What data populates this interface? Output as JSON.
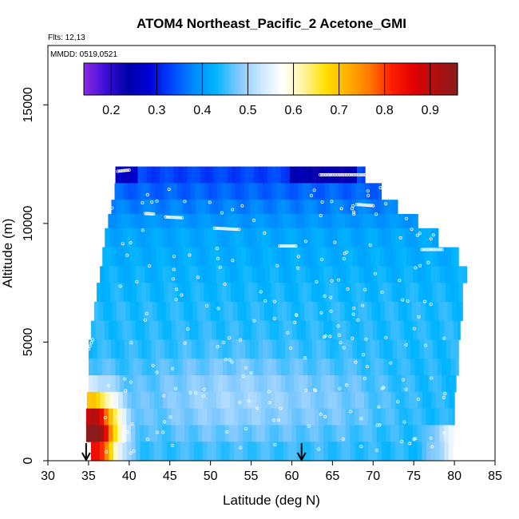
{
  "chart_data": {
    "type": "heatmap",
    "title": "ATOM4 Northeast_Pacific_2 Acetone_GMI",
    "flights_label": "Flts: 12,13",
    "dates_label": "MMDD: 0519,0521",
    "xlabel": "Latitude (deg N)",
    "ylabel": "Altitude (m)",
    "xlim": [
      30,
      85
    ],
    "ylim": [
      0,
      17500
    ],
    "x_ticks": [
      "30",
      "35",
      "40",
      "45",
      "50",
      "55",
      "60",
      "65",
      "70",
      "75",
      "80",
      "85"
    ],
    "y_ticks": [
      "0",
      "5000",
      "10000",
      "15000"
    ],
    "grid": false,
    "colorbar": {
      "range": [
        0.14,
        0.96
      ],
      "ticks": [
        "0.2",
        "0.3",
        "0.4",
        "0.5",
        "0.6",
        "0.7",
        "0.8",
        "0.9"
      ],
      "placement": "top",
      "colors": [
        "#8a2be2",
        "#3b0fd8",
        "#0000a8",
        "#0000d8",
        "#0046ff",
        "#008cff",
        "#00b4ff",
        "#7ec8ff",
        "#c8e6ff",
        "#ffffff",
        "#fff4a0",
        "#ffe000",
        "#ffb000",
        "#ff7800",
        "#ff2000",
        "#e00000",
        "#b01010",
        "#8b1a1a"
      ]
    },
    "altitude_bands": [
      {
        "alt": [
          11700,
          12400
        ],
        "lat": [
          38.3,
          69.0
        ]
      },
      {
        "alt": [
          11000,
          11700
        ],
        "lat": [
          38.2,
          71.0
        ]
      },
      {
        "alt": [
          10400,
          11000
        ],
        "lat": [
          37.8,
          73.0
        ]
      },
      {
        "alt": [
          9800,
          10400
        ],
        "lat": [
          37.4,
          75.5
        ]
      },
      {
        "alt": [
          9000,
          9800
        ],
        "lat": [
          37.0,
          78.0
        ]
      },
      {
        "alt": [
          8200,
          9000
        ],
        "lat": [
          36.7,
          80.5
        ]
      },
      {
        "alt": [
          7500,
          8200
        ],
        "lat": [
          36.4,
          81.5
        ]
      },
      {
        "alt": [
          6700,
          7500
        ],
        "lat": [
          36.0,
          81.0
        ]
      },
      {
        "alt": [
          5900,
          6700
        ],
        "lat": [
          35.7,
          81.0
        ]
      },
      {
        "alt": [
          5100,
          5900
        ],
        "lat": [
          35.3,
          80.7
        ]
      },
      {
        "alt": [
          4300,
          5100
        ],
        "lat": [
          35.0,
          80.5
        ]
      },
      {
        "alt": [
          3600,
          4300
        ],
        "lat": [
          35.0,
          80.5
        ]
      },
      {
        "alt": [
          2900,
          3600
        ],
        "lat": [
          35.0,
          80.2
        ]
      },
      {
        "alt": [
          2200,
          2900
        ],
        "lat": [
          34.8,
          80.0
        ]
      },
      {
        "alt": [
          1500,
          2200
        ],
        "lat": [
          34.7,
          80.0
        ]
      },
      {
        "alt": [
          800,
          1500
        ],
        "lat": [
          34.7,
          80.0
        ]
      },
      {
        "alt": [
          0,
          800
        ],
        "lat": [
          35.3,
          80.0
        ]
      }
    ],
    "arrows_lat": [
      34.7,
      61.2
    ]
  }
}
